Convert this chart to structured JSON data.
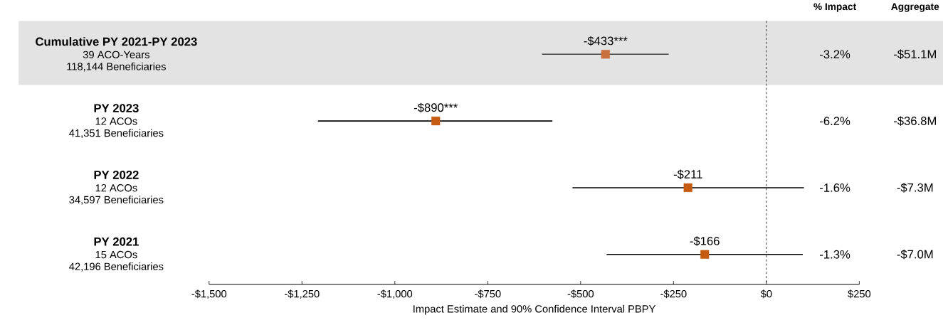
{
  "chart_data": {
    "type": "scatter",
    "orientation": "horizontal",
    "marker": "square",
    "categories": [
      "Cumulative PY 2021-PY 2023",
      "PY 2023",
      "PY 2022",
      "PY 2021"
    ],
    "values": [
      -433,
      -890,
      -211,
      -166
    ],
    "errors": [
      [
        -604,
        -263
      ],
      [
        -1207,
        -576
      ],
      [
        -522,
        101
      ],
      [
        -430,
        98
      ]
    ],
    "colors": [
      "#c8703e",
      "#c55a11",
      "#c55a11",
      "#c55a11"
    ],
    "value_labels": [
      "-$433***",
      "-$890***",
      "-$211",
      "-$166"
    ],
    "xlabel": "Impact Estimate and 90% Confidence Interval PBPY",
    "xlim": [
      -1500,
      250
    ],
    "xticks": [
      {
        "value": -1500,
        "label": "-$1,500"
      },
      {
        "value": -1250,
        "label": "-$1,250"
      },
      {
        "value": -1000,
        "label": "-$1,000"
      },
      {
        "value": -750,
        "label": "-$750"
      },
      {
        "value": -500,
        "label": "-$500"
      },
      {
        "value": -250,
        "label": "-$250"
      },
      {
        "value": 0,
        "label": "$0"
      },
      {
        "value": 250,
        "label": "$250"
      }
    ],
    "ref_lines": [
      {
        "axis": "x",
        "value": 0,
        "line_style": "dashed",
        "color": "#000000"
      }
    ],
    "annotations": [
      "39 ACO-Years",
      "118,144 Beneficiaries",
      "12 ACOs",
      "41,351 Beneficiaries",
      "12 ACOs",
      "34,597 Beneficiaries",
      "15 ACOs",
      "42,196 Beneficiaries",
      "% Impact",
      "Aggregate",
      "-3.2%",
      "-$51.1M",
      "-6.2%",
      "-$36.8M",
      "-1.6%",
      "-$7.3M",
      "-1.3%",
      "-$7.0M"
    ]
  }
}
